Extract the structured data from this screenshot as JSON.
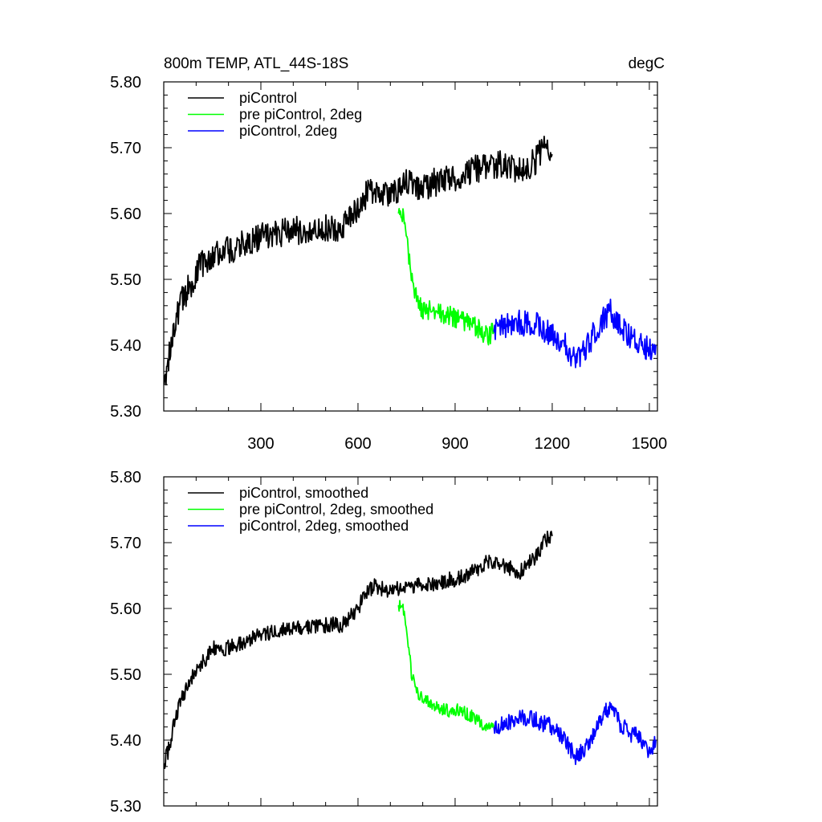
{
  "figure": {
    "title_left": "800m TEMP, ATL_44S-18S",
    "title_right": "degC"
  },
  "chart_data": [
    {
      "type": "line",
      "panel": "top",
      "ylim": [
        5.3,
        5.8
      ],
      "xlim": [
        0,
        1525
      ],
      "yticks": [
        "5.30",
        "5.40",
        "5.50",
        "5.60",
        "5.70",
        "5.80"
      ],
      "xticks": [
        "300",
        "600",
        "900",
        "1200",
        "1500"
      ],
      "legend_position": "top-left",
      "series": [
        {
          "name": "piControl",
          "color": "#000000",
          "noise": 0.022,
          "points": [
            [
              1,
              5.34
            ],
            [
              15,
              5.38
            ],
            [
              30,
              5.43
            ],
            [
              50,
              5.46
            ],
            [
              80,
              5.49
            ],
            [
              110,
              5.52
            ],
            [
              150,
              5.54
            ],
            [
              200,
              5.545
            ],
            [
              250,
              5.555
            ],
            [
              300,
              5.565
            ],
            [
              350,
              5.57
            ],
            [
              400,
              5.575
            ],
            [
              450,
              5.575
            ],
            [
              500,
              5.58
            ],
            [
              550,
              5.575
            ],
            [
              600,
              5.605
            ],
            [
              620,
              5.625
            ],
            [
              650,
              5.635
            ],
            [
              700,
              5.63
            ],
            [
              750,
              5.645
            ],
            [
              800,
              5.64
            ],
            [
              850,
              5.65
            ],
            [
              900,
              5.655
            ],
            [
              950,
              5.665
            ],
            [
              1000,
              5.675
            ],
            [
              1050,
              5.675
            ],
            [
              1100,
              5.665
            ],
            [
              1150,
              5.68
            ],
            [
              1180,
              5.71
            ],
            [
              1200,
              5.69
            ]
          ]
        },
        {
          "name": "pre piControl, 2deg",
          "color": "#00ff00",
          "noise": 0.016,
          "points": [
            [
              725,
              5.6
            ],
            [
              735,
              5.605
            ],
            [
              745,
              5.58
            ],
            [
              755,
              5.54
            ],
            [
              765,
              5.5
            ],
            [
              780,
              5.47
            ],
            [
              800,
              5.455
            ],
            [
              830,
              5.45
            ],
            [
              870,
              5.445
            ],
            [
              920,
              5.44
            ],
            [
              970,
              5.425
            ],
            [
              1000,
              5.415
            ],
            [
              1020,
              5.42
            ]
          ]
        },
        {
          "name": "piControl, 2deg",
          "color": "#0000ff",
          "noise": 0.02,
          "points": [
            [
              1020,
              5.42
            ],
            [
              1060,
              5.43
            ],
            [
              1100,
              5.435
            ],
            [
              1150,
              5.43
            ],
            [
              1200,
              5.415
            ],
            [
              1240,
              5.4
            ],
            [
              1270,
              5.38
            ],
            [
              1300,
              5.39
            ],
            [
              1330,
              5.42
            ],
            [
              1360,
              5.44
            ],
            [
              1380,
              5.45
            ],
            [
              1410,
              5.43
            ],
            [
              1440,
              5.41
            ],
            [
              1470,
              5.405
            ],
            [
              1500,
              5.39
            ],
            [
              1520,
              5.4
            ]
          ]
        }
      ]
    },
    {
      "type": "line",
      "panel": "bottom",
      "ylim": [
        5.3,
        5.8
      ],
      "xlim": [
        0,
        1525
      ],
      "yticks": [
        "5.30",
        "5.40",
        "5.50",
        "5.60",
        "5.70",
        "5.80"
      ],
      "legend_position": "top-left",
      "series": [
        {
          "name": "piControl, smoothed",
          "color": "#000000",
          "noise": 0.012,
          "points": [
            [
              1,
              5.365
            ],
            [
              15,
              5.385
            ],
            [
              30,
              5.42
            ],
            [
              50,
              5.455
            ],
            [
              80,
              5.49
            ],
            [
              110,
              5.51
            ],
            [
              150,
              5.54
            ],
            [
              200,
              5.54
            ],
            [
              250,
              5.55
            ],
            [
              300,
              5.56
            ],
            [
              350,
              5.565
            ],
            [
              400,
              5.57
            ],
            [
              450,
              5.57
            ],
            [
              500,
              5.575
            ],
            [
              550,
              5.575
            ],
            [
              600,
              5.6
            ],
            [
              620,
              5.62
            ],
            [
              650,
              5.635
            ],
            [
              700,
              5.625
            ],
            [
              750,
              5.635
            ],
            [
              800,
              5.635
            ],
            [
              850,
              5.64
            ],
            [
              900,
              5.645
            ],
            [
              950,
              5.655
            ],
            [
              1000,
              5.67
            ],
            [
              1050,
              5.665
            ],
            [
              1100,
              5.655
            ],
            [
              1150,
              5.68
            ],
            [
              1180,
              5.705
            ],
            [
              1200,
              5.71
            ]
          ]
        },
        {
          "name": "pre piControl, 2deg, smoothed",
          "color": "#00ff00",
          "noise": 0.01,
          "points": [
            [
              725,
              5.605
            ],
            [
              740,
              5.6
            ],
            [
              755,
              5.55
            ],
            [
              765,
              5.5
            ],
            [
              780,
              5.475
            ],
            [
              800,
              5.46
            ],
            [
              830,
              5.455
            ],
            [
              870,
              5.445
            ],
            [
              920,
              5.445
            ],
            [
              970,
              5.43
            ],
            [
              1000,
              5.415
            ],
            [
              1020,
              5.42
            ]
          ]
        },
        {
          "name": "piControl, 2deg, smoothed",
          "color": "#0000ff",
          "noise": 0.013,
          "points": [
            [
              1020,
              5.42
            ],
            [
              1060,
              5.425
            ],
            [
              1100,
              5.435
            ],
            [
              1150,
              5.43
            ],
            [
              1200,
              5.42
            ],
            [
              1240,
              5.4
            ],
            [
              1270,
              5.375
            ],
            [
              1300,
              5.385
            ],
            [
              1330,
              5.41
            ],
            [
              1360,
              5.44
            ],
            [
              1380,
              5.45
            ],
            [
              1410,
              5.425
            ],
            [
              1440,
              5.41
            ],
            [
              1470,
              5.405
            ],
            [
              1500,
              5.38
            ],
            [
              1520,
              5.4
            ]
          ]
        }
      ]
    }
  ]
}
